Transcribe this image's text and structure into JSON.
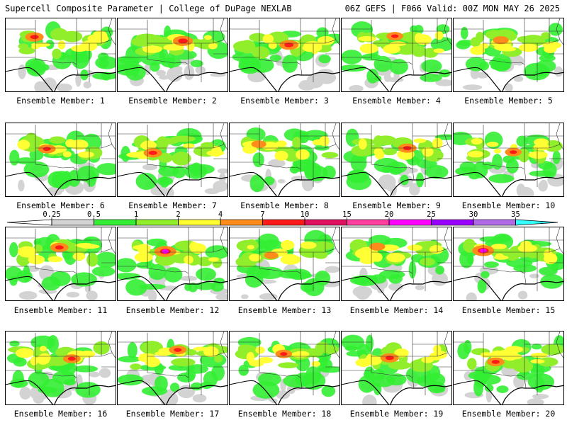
{
  "header": {
    "left": "Supercell Composite Parameter | College of DuPage NEXLAB",
    "right": "06Z GEFS | F066 Valid: 00Z MON MAY 26 2025"
  },
  "members": [
    {
      "label": "Ensemble Member: 1",
      "intensity": 0.75
    },
    {
      "label": "Ensemble Member: 2",
      "intensity": 0.85
    },
    {
      "label": "Ensemble Member: 3",
      "intensity": 0.8
    },
    {
      "label": "Ensemble Member: 4",
      "intensity": 0.65
    },
    {
      "label": "Ensemble Member: 5",
      "intensity": 0.6
    },
    {
      "label": "Ensemble Member: 6",
      "intensity": 0.7
    },
    {
      "label": "Ensemble Member: 7",
      "intensity": 0.75
    },
    {
      "label": "Ensemble Member: 8",
      "intensity": 0.55
    },
    {
      "label": "Ensemble Member: 9",
      "intensity": 0.75
    },
    {
      "label": "Ensemble Member: 10",
      "intensity": 0.65
    },
    {
      "label": "Ensemble Member: 11",
      "intensity": 0.75
    },
    {
      "label": "Ensemble Member: 12",
      "intensity": 0.95
    },
    {
      "label": "Ensemble Member: 13",
      "intensity": 0.5
    },
    {
      "label": "Ensemble Member: 14",
      "intensity": 0.6
    },
    {
      "label": "Ensemble Member: 15",
      "intensity": 0.95
    },
    {
      "label": "Ensemble Member: 16",
      "intensity": 0.7
    },
    {
      "label": "Ensemble Member: 17",
      "intensity": 0.7
    },
    {
      "label": "Ensemble Member: 18",
      "intensity": 0.65
    },
    {
      "label": "Ensemble Member: 19",
      "intensity": 0.75
    },
    {
      "label": "Ensemble Member: 20",
      "intensity": 0.7
    }
  ],
  "colorbar": {
    "ticks": [
      "0.25",
      "0.5",
      "1",
      "2",
      "4",
      "7",
      "10",
      "15",
      "20",
      "25",
      "30",
      "35"
    ],
    "colors": [
      "#d3d3d3",
      "#33ee33",
      "#90ee2a",
      "#ffff33",
      "#ff8c1a",
      "#ff1a1a",
      "#e0115f",
      "#ff3fa0",
      "#ff00ff",
      "#9a00ff",
      "#b06ae8",
      "#33ffff"
    ]
  }
}
